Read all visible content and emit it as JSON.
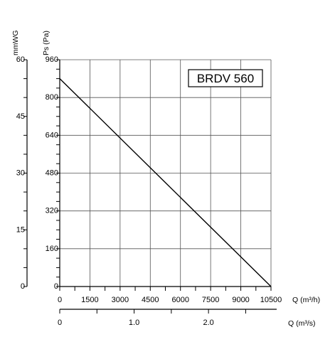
{
  "chart_data": {
    "type": "line",
    "title": "BRDV 560",
    "series": [
      {
        "x": [
          0,
          10500
        ],
        "y": [
          880,
          0
        ]
      }
    ],
    "x_axis": {
      "label": "Q (m³/h)",
      "range": [
        0,
        10500
      ],
      "ticks": [
        0,
        1500,
        3000,
        4500,
        6000,
        7500,
        9000,
        10500
      ],
      "tick_labels": [
        "0",
        "1500",
        "3000",
        "4500",
        "6000",
        "7500",
        "9000",
        "10500"
      ]
    },
    "x2_axis": {
      "label": "Q (m³/s)",
      "range": [
        0,
        2.9167
      ],
      "ticks": [
        0,
        1.0,
        2.0
      ],
      "tick_labels": [
        "0",
        "1.0",
        "2.0"
      ]
    },
    "y_axis": {
      "label": "Ps (Pa)",
      "range": [
        0,
        960
      ],
      "ticks": [
        0,
        160,
        320,
        480,
        640,
        800,
        960
      ],
      "tick_labels": [
        "0",
        "160",
        "320",
        "480",
        "640",
        "800",
        "960"
      ]
    },
    "y2_axis": {
      "label": "mmWG",
      "range": [
        0,
        60
      ],
      "ticks": [
        0,
        15,
        30,
        45,
        60
      ],
      "tick_labels": [
        "0",
        "15",
        "30",
        "45",
        "60"
      ]
    },
    "grid": true
  }
}
